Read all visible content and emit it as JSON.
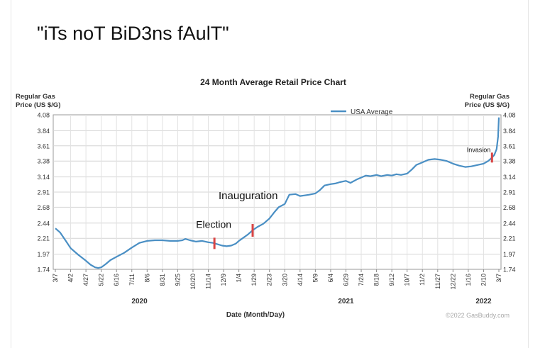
{
  "caption": "\"iTs noT BiD3ns fAulT\"",
  "chart_data": {
    "type": "line",
    "title": "24 Month Average Retail Price Chart",
    "ylabel_left": [
      "Regular Gas",
      "Price (US $/G)"
    ],
    "ylabel_right": [
      "Regular Gas",
      "Price (US $/G)"
    ],
    "xlabel": "Date (Month/Day)",
    "credit": "©2022 GasBuddy.com",
    "ylim": [
      1.74,
      4.08
    ],
    "y_ticks": [
      "4.08",
      "3.84",
      "3.61",
      "3.38",
      "3.14",
      "2.91",
      "2.68",
      "2.44",
      "2.21",
      "1.97",
      "1.74"
    ],
    "x_ticks": [
      "3/7",
      "4/2",
      "4/27",
      "5/22",
      "6/16",
      "7/11",
      "8/6",
      "8/31",
      "9/25",
      "10/20",
      "11/14",
      "12/9",
      "1/4",
      "1/29",
      "2/23",
      "3/20",
      "4/14",
      "5/9",
      "6/4",
      "6/29",
      "7/24",
      "8/18",
      "9/12",
      "10/7",
      "11/2",
      "11/27",
      "12/22",
      "1/16",
      "2/10",
      "3/7"
    ],
    "year_labels": [
      {
        "label": "2020",
        "tick_index": 5.5
      },
      {
        "label": "2021",
        "tick_index": 19
      },
      {
        "label": "2022",
        "tick_index": 28
      }
    ],
    "legend": {
      "label": "USA Average",
      "placement": "top-right"
    },
    "grid": true,
    "series": [
      {
        "name": "USA Average",
        "color": "#4a8fc4",
        "points": [
          [
            0,
            2.36
          ],
          [
            0.3,
            2.3
          ],
          [
            0.6,
            2.2
          ],
          [
            1,
            2.06
          ],
          [
            1.5,
            1.96
          ],
          [
            2,
            1.87
          ],
          [
            2.3,
            1.81
          ],
          [
            2.6,
            1.77
          ],
          [
            2.8,
            1.76
          ],
          [
            3,
            1.77
          ],
          [
            3.3,
            1.82
          ],
          [
            3.6,
            1.88
          ],
          [
            4,
            1.93
          ],
          [
            4.5,
            1.99
          ],
          [
            5,
            2.07
          ],
          [
            5.5,
            2.14
          ],
          [
            6,
            2.17
          ],
          [
            6.5,
            2.18
          ],
          [
            7,
            2.18
          ],
          [
            7.5,
            2.17
          ],
          [
            8,
            2.17
          ],
          [
            8.3,
            2.18
          ],
          [
            8.5,
            2.2
          ],
          [
            8.8,
            2.18
          ],
          [
            9.2,
            2.16
          ],
          [
            9.6,
            2.17
          ],
          [
            10,
            2.15
          ],
          [
            10.3,
            2.14
          ],
          [
            10.6,
            2.12
          ],
          [
            10.9,
            2.1
          ],
          [
            11.2,
            2.09
          ],
          [
            11.5,
            2.1
          ],
          [
            11.8,
            2.13
          ],
          [
            12,
            2.17
          ],
          [
            12.3,
            2.22
          ],
          [
            12.6,
            2.27
          ],
          [
            12.9,
            2.33
          ],
          [
            13.2,
            2.38
          ],
          [
            13.6,
            2.43
          ],
          [
            14,
            2.51
          ],
          [
            14.3,
            2.6
          ],
          [
            14.6,
            2.68
          ],
          [
            15,
            2.73
          ],
          [
            15.3,
            2.87
          ],
          [
            15.7,
            2.88
          ],
          [
            16,
            2.85
          ],
          [
            16.3,
            2.86
          ],
          [
            16.6,
            2.87
          ],
          [
            17,
            2.89
          ],
          [
            17.3,
            2.94
          ],
          [
            17.6,
            3.01
          ],
          [
            18,
            3.03
          ],
          [
            18.3,
            3.04
          ],
          [
            18.6,
            3.06
          ],
          [
            19,
            3.08
          ],
          [
            19.3,
            3.05
          ],
          [
            19.7,
            3.1
          ],
          [
            20,
            3.13
          ],
          [
            20.3,
            3.16
          ],
          [
            20.6,
            3.15
          ],
          [
            21,
            3.17
          ],
          [
            21.3,
            3.15
          ],
          [
            21.7,
            3.17
          ],
          [
            22,
            3.16
          ],
          [
            22.3,
            3.18
          ],
          [
            22.6,
            3.17
          ],
          [
            23,
            3.19
          ],
          [
            23.3,
            3.25
          ],
          [
            23.6,
            3.32
          ],
          [
            24,
            3.36
          ],
          [
            24.4,
            3.4
          ],
          [
            24.8,
            3.41
          ],
          [
            25.2,
            3.4
          ],
          [
            25.6,
            3.38
          ],
          [
            26,
            3.34
          ],
          [
            26.4,
            3.31
          ],
          [
            26.8,
            3.29
          ],
          [
            27.2,
            3.3
          ],
          [
            27.6,
            3.32
          ],
          [
            28,
            3.34
          ],
          [
            28.3,
            3.38
          ],
          [
            28.5,
            3.42
          ],
          [
            28.7,
            3.47
          ],
          [
            28.85,
            3.56
          ],
          [
            28.95,
            3.75
          ],
          [
            29,
            4.04
          ]
        ]
      }
    ],
    "annotations": [
      {
        "label": "Election",
        "tick_index": 10.4
      },
      {
        "label": "Inauguration",
        "tick_index": 12.9
      },
      {
        "label": "Invasion",
        "tick_index": 28.55
      }
    ]
  }
}
